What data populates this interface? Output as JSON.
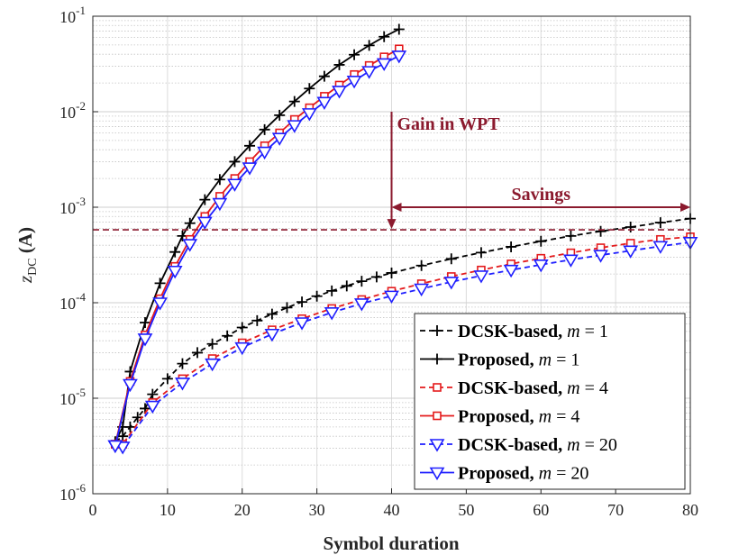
{
  "chart_data": {
    "type": "line",
    "title": "",
    "xlabel": "Symbol duration",
    "ylabel_var": "z",
    "ylabel_sub": "DC",
    "ylabel_unit": " (A)",
    "xlim": [
      0,
      80
    ],
    "ylim_log10": [
      -6,
      -1
    ],
    "yscale": "log",
    "grid": true,
    "x_ticks": [
      0,
      10,
      20,
      30,
      40,
      50,
      60,
      70,
      80
    ],
    "y_tick_exponents": [
      -6,
      -5,
      -4,
      -3,
      -2,
      -1
    ],
    "y_tick_base": "10",
    "legend_position": "bottom-right",
    "colors": {
      "black": "#000000",
      "red": "#e41a1c",
      "blue": "#1f1fff",
      "annotation": "#8b1a2e"
    },
    "series": [
      {
        "name": "DCSK-based, m = 1",
        "label": "DCSK-based, ",
        "math": "m",
        "eq": " = 1",
        "color": "#000000",
        "dashed": true,
        "marker": "plus",
        "x": [
          3,
          4,
          5,
          6,
          7,
          8,
          10,
          12,
          14,
          16,
          18,
          20,
          22,
          24,
          26,
          28,
          30,
          32,
          34,
          36,
          38,
          40,
          44,
          48,
          52,
          56,
          60,
          64,
          68,
          72,
          76,
          80
        ],
        "y": [
          3.5e-06,
          4e-06,
          5e-06,
          6.3e-06,
          7.8e-06,
          1.1e-05,
          1.6e-05,
          2.3e-05,
          3e-05,
          3.7e-05,
          4.5e-05,
          5.5e-05,
          6.5e-05,
          7.6e-05,
          8.9e-05,
          0.000102,
          0.000117,
          0.000133,
          0.00015,
          0.000168,
          0.000186,
          0.000205,
          0.000245,
          0.000288,
          0.000335,
          0.000385,
          0.00044,
          0.0005,
          0.00056,
          0.00062,
          0.00069,
          0.00076
        ]
      },
      {
        "name": "Proposed, m = 1",
        "label": "Proposed, ",
        "math": "m",
        "eq": " = 1",
        "color": "#000000",
        "dashed": false,
        "marker": "plus",
        "x": [
          3,
          4,
          5,
          7,
          9,
          11,
          12,
          13,
          15,
          17,
          19,
          21,
          23,
          25,
          27,
          29,
          31,
          33,
          35,
          37,
          39,
          41
        ],
        "y": [
          3.5e-06,
          5e-06,
          1.9e-05,
          6.2e-05,
          0.00016,
          0.00034,
          0.0005,
          0.00068,
          0.0012,
          0.00195,
          0.003,
          0.0044,
          0.0065,
          0.0092,
          0.0128,
          0.0175,
          0.0235,
          0.031,
          0.0395,
          0.0495,
          0.061,
          0.073
        ]
      },
      {
        "name": "DCSK-based, m = 4",
        "label": "DCSK-based, ",
        "math": "m",
        "eq": " = 4",
        "color": "#e41a1c",
        "dashed": true,
        "marker": "square",
        "x": [
          3,
          4,
          8,
          12,
          16,
          20,
          24,
          28,
          32,
          36,
          40,
          44,
          48,
          52,
          56,
          60,
          64,
          68,
          72,
          76,
          80
        ],
        "y": [
          3.3e-06,
          3.3e-06,
          9e-06,
          1.6e-05,
          2.6e-05,
          3.8e-05,
          5.2e-05,
          6.8e-05,
          8.7e-05,
          0.000108,
          0.000132,
          0.000158,
          0.000188,
          0.00022,
          0.000255,
          0.000292,
          0.000333,
          0.000376,
          0.00042,
          0.00046,
          0.00049
        ]
      },
      {
        "name": "Proposed, m = 4",
        "label": "Proposed, ",
        "math": "m",
        "eq": " = 4",
        "color": "#e41a1c",
        "dashed": false,
        "marker": "square",
        "x": [
          3,
          5,
          7,
          9,
          11,
          13,
          15,
          17,
          19,
          21,
          23,
          25,
          27,
          29,
          31,
          33,
          35,
          37,
          39,
          41
        ],
        "y": [
          3.3e-06,
          1.5e-05,
          4.6e-05,
          0.00011,
          0.00024,
          0.00046,
          0.0008,
          0.0013,
          0.002,
          0.003,
          0.0044,
          0.006,
          0.0083,
          0.011,
          0.0145,
          0.019,
          0.0245,
          0.0305,
          0.0375,
          0.0455
        ]
      },
      {
        "name": "DCSK-based, m = 20",
        "label": "DCSK-based, ",
        "math": "m",
        "eq": " = 20",
        "color": "#1f1fff",
        "dashed": true,
        "marker": "triangle",
        "x": [
          3,
          4,
          8,
          12,
          16,
          20,
          24,
          28,
          32,
          36,
          40,
          44,
          48,
          52,
          56,
          60,
          64,
          68,
          72,
          76,
          80
        ],
        "y": [
          3.2e-06,
          3.1e-06,
          8.3e-06,
          1.45e-05,
          2.3e-05,
          3.4e-05,
          4.7e-05,
          6.2e-05,
          7.9e-05,
          9.8e-05,
          0.000118,
          0.00014,
          0.000165,
          0.000192,
          0.00022,
          0.00025,
          0.000282,
          0.000315,
          0.00035,
          0.00039,
          0.00043
        ]
      },
      {
        "name": "Proposed, m = 20",
        "label": "Proposed, ",
        "math": "m",
        "eq": " = 20",
        "color": "#1f1fff",
        "dashed": false,
        "marker": "triangle",
        "x": [
          3,
          5,
          7,
          9,
          11,
          13,
          15,
          17,
          19,
          21,
          23,
          25,
          27,
          29,
          31,
          33,
          35,
          37,
          39,
          41
        ],
        "y": [
          3.2e-06,
          1.4e-05,
          4.2e-05,
          0.0001,
          0.000215,
          0.00041,
          0.0007,
          0.0011,
          0.00175,
          0.0026,
          0.0038,
          0.0053,
          0.0072,
          0.0096,
          0.0126,
          0.0165,
          0.021,
          0.0265,
          0.032,
          0.0385
        ]
      }
    ],
    "annotations": {
      "threshold_y": 0.00058,
      "gain_label": "Gain in WPT",
      "gain_arrow": {
        "x": 40,
        "y_from": 0.01,
        "y_to": 0.00058
      },
      "savings_label": "Savings",
      "savings_arrow": {
        "x_from": 40,
        "x_to": 80,
        "y": 0.001
      }
    }
  }
}
